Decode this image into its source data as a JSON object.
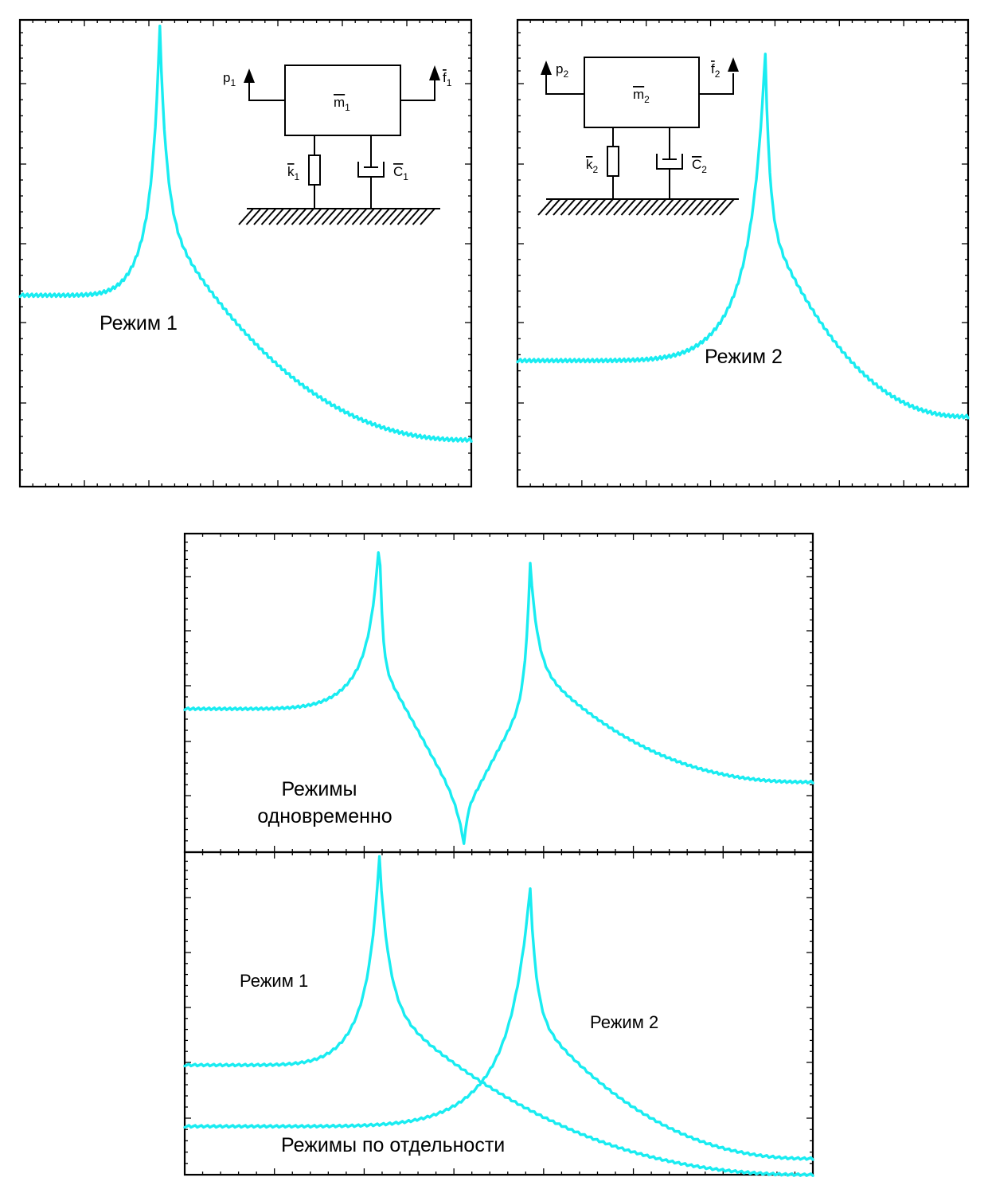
{
  "chart_data": [
    {
      "type": "line",
      "label": "Режим 1",
      "schematic": {
        "mass": "m",
        "force_in": "p",
        "force_out": "f",
        "spring": "k",
        "damper": "C",
        "subscript": "1"
      },
      "series": [
        {
          "resonance_x_frac": 0.31,
          "peak_y_frac": 0.99,
          "base_y_frac": 0.41,
          "end_y_frac": 0.1
        }
      ]
    },
    {
      "type": "line",
      "label": "Режим 2",
      "schematic": {
        "mass": "m",
        "force_in": "p",
        "force_out": "f",
        "spring": "k",
        "damper": "C",
        "subscript": "2"
      },
      "series": [
        {
          "resonance_x_frac": 0.55,
          "peak_y_frac": 0.93,
          "base_y_frac": 0.27,
          "end_y_frac": 0.15
        }
      ]
    },
    {
      "type": "line",
      "label_line1": "Режимы",
      "label_line2": "одновременно",
      "series": [
        {
          "peaks_x_frac": [
            0.31,
            0.55
          ],
          "peak_y_frac": [
            0.99,
            0.91
          ],
          "antiresonance_x_frac": 0.445,
          "base_y_frac": 0.45,
          "end_y_frac": 0.22
        }
      ]
    },
    {
      "type": "line",
      "label": "Режимы по отдельности",
      "series": [
        {
          "name": "Режим 1",
          "resonance_x_frac": 0.31,
          "peak_y_frac": 0.99,
          "base_y_frac": 0.34,
          "end_y_frac": 0.0
        },
        {
          "name": "Режим 2",
          "resonance_x_frac": 0.55,
          "peak_y_frac": 0.89,
          "base_y_frac": 0.15,
          "end_y_frac": 0.05
        }
      ]
    }
  ],
  "colors": {
    "curve": "#19ecf1",
    "axes": "#000000"
  }
}
